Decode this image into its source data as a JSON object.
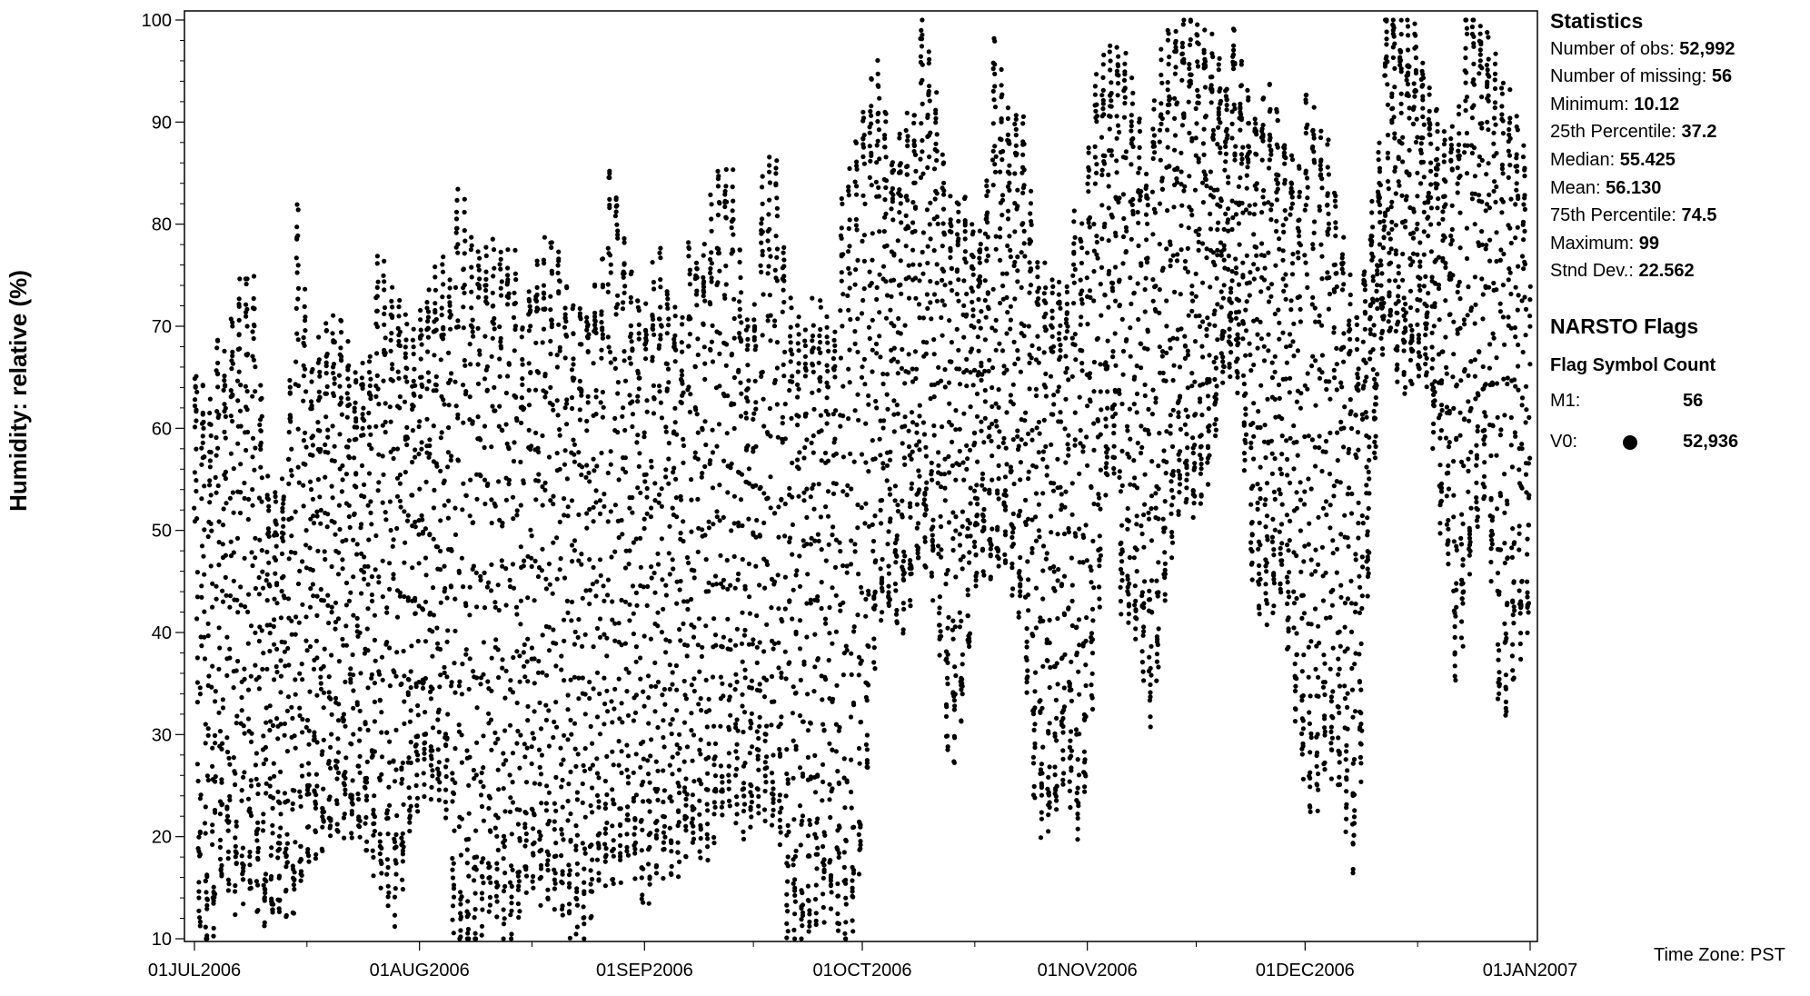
{
  "chart_data": {
    "type": "scatter",
    "title": "",
    "xlabel": "",
    "ylabel": "Humidity: relative (%)",
    "ylim": [
      10,
      100
    ],
    "y_ticks": [
      10,
      20,
      30,
      40,
      50,
      60,
      70,
      80,
      90,
      100
    ],
    "x_range": [
      "2006-07-01",
      "2007-01-01"
    ],
    "x_ticks": [
      "01JUL2006",
      "01AUG2006",
      "01SEP2006",
      "01OCT2006",
      "01NOV2006",
      "01DEC2006",
      "01JAN2007"
    ],
    "marker_color": "#000000",
    "grid": false,
    "series": [
      {
        "flag": "V0",
        "daily_envelope": [
          {
            "date": "2006-07-01",
            "min": 18,
            "max": 67
          },
          {
            "date": "2006-07-03",
            "min": 12,
            "max": 65
          },
          {
            "date": "2006-07-05",
            "min": 20,
            "max": 60
          },
          {
            "date": "2006-07-07",
            "min": 16,
            "max": 70
          },
          {
            "date": "2006-07-09",
            "min": 17,
            "max": 74
          },
          {
            "date": "2006-07-11",
            "min": 12,
            "max": 55
          },
          {
            "date": "2006-07-13",
            "min": 15,
            "max": 55
          },
          {
            "date": "2006-07-15",
            "min": 13,
            "max": 77
          },
          {
            "date": "2006-07-17",
            "min": 20,
            "max": 60
          },
          {
            "date": "2006-07-19",
            "min": 19,
            "max": 67
          },
          {
            "date": "2006-07-21",
            "min": 21,
            "max": 70
          },
          {
            "date": "2006-07-23",
            "min": 20,
            "max": 66
          },
          {
            "date": "2006-07-25",
            "min": 18,
            "max": 70
          },
          {
            "date": "2006-07-27",
            "min": 13,
            "max": 70
          },
          {
            "date": "2006-07-29",
            "min": 10,
            "max": 70
          },
          {
            "date": "2006-07-31",
            "min": 19,
            "max": 67
          },
          {
            "date": "2006-08-02",
            "min": 22,
            "max": 74
          },
          {
            "date": "2006-08-04",
            "min": 20,
            "max": 79
          },
          {
            "date": "2006-08-06",
            "min": 17,
            "max": 78
          },
          {
            "date": "2006-08-08",
            "min": 10,
            "max": 75
          },
          {
            "date": "2006-08-10",
            "min": 18,
            "max": 76
          },
          {
            "date": "2006-08-12",
            "min": 17,
            "max": 77
          },
          {
            "date": "2006-08-14",
            "min": 15,
            "max": 79
          },
          {
            "date": "2006-08-16",
            "min": 20,
            "max": 67
          },
          {
            "date": "2006-08-18",
            "min": 18,
            "max": 73
          },
          {
            "date": "2006-08-20",
            "min": 17,
            "max": 76
          },
          {
            "date": "2006-08-22",
            "min": 14,
            "max": 70
          },
          {
            "date": "2006-08-24",
            "min": 13,
            "max": 73
          },
          {
            "date": "2006-08-26",
            "min": 18,
            "max": 79
          },
          {
            "date": "2006-08-28",
            "min": 16,
            "max": 80
          },
          {
            "date": "2006-08-30",
            "min": 20,
            "max": 72
          },
          {
            "date": "2006-09-01",
            "min": 13,
            "max": 70
          },
          {
            "date": "2006-09-03",
            "min": 18,
            "max": 78
          },
          {
            "date": "2006-09-05",
            "min": 16,
            "max": 74
          },
          {
            "date": "2006-09-07",
            "min": 18,
            "max": 72
          },
          {
            "date": "2006-09-09",
            "min": 17,
            "max": 73
          },
          {
            "date": "2006-09-11",
            "min": 19,
            "max": 83
          },
          {
            "date": "2006-09-13",
            "min": 22,
            "max": 85
          },
          {
            "date": "2006-09-15",
            "min": 18,
            "max": 72
          },
          {
            "date": "2006-09-17",
            "min": 20,
            "max": 77
          },
          {
            "date": "2006-09-19",
            "min": 16,
            "max": 83
          },
          {
            "date": "2006-09-21",
            "min": 17,
            "max": 70
          },
          {
            "date": "2006-09-23",
            "min": 15,
            "max": 68
          },
          {
            "date": "2006-09-25",
            "min": 18,
            "max": 74
          },
          {
            "date": "2006-09-27",
            "min": 18,
            "max": 72
          },
          {
            "date": "2006-09-29",
            "min": 11,
            "max": 78
          },
          {
            "date": "2006-10-01",
            "min": 23,
            "max": 88
          },
          {
            "date": "2006-10-03",
            "min": 45,
            "max": 94
          },
          {
            "date": "2006-10-05",
            "min": 45,
            "max": 87
          },
          {
            "date": "2006-10-07",
            "min": 44,
            "max": 92
          },
          {
            "date": "2006-10-09",
            "min": 50,
            "max": 95
          },
          {
            "date": "2006-10-11",
            "min": 46,
            "max": 89
          },
          {
            "date": "2006-10-13",
            "min": 27,
            "max": 80
          },
          {
            "date": "2006-10-15",
            "min": 33,
            "max": 82
          },
          {
            "date": "2006-10-17",
            "min": 48,
            "max": 80
          },
          {
            "date": "2006-10-19",
            "min": 45,
            "max": 92
          },
          {
            "date": "2006-10-21",
            "min": 47,
            "max": 86
          },
          {
            "date": "2006-10-23",
            "min": 40,
            "max": 89
          },
          {
            "date": "2006-10-25",
            "min": 20,
            "max": 75
          },
          {
            "date": "2006-10-27",
            "min": 19,
            "max": 75
          },
          {
            "date": "2006-10-29",
            "min": 25,
            "max": 77
          },
          {
            "date": "2006-10-31",
            "min": 16,
            "max": 72
          },
          {
            "date": "2006-11-02",
            "min": 34,
            "max": 91
          },
          {
            "date": "2006-11-04",
            "min": 55,
            "max": 95
          },
          {
            "date": "2006-11-06",
            "min": 47,
            "max": 98
          },
          {
            "date": "2006-11-08",
            "min": 45,
            "max": 93
          },
          {
            "date": "2006-11-10",
            "min": 35,
            "max": 85
          },
          {
            "date": "2006-11-12",
            "min": 51,
            "max": 95
          },
          {
            "date": "2006-11-14",
            "min": 58,
            "max": 98
          },
          {
            "date": "2006-11-16",
            "min": 55,
            "max": 99
          },
          {
            "date": "2006-11-18",
            "min": 60,
            "max": 99
          },
          {
            "date": "2006-11-20",
            "min": 70,
            "max": 97
          },
          {
            "date": "2006-11-22",
            "min": 67,
            "max": 90
          },
          {
            "date": "2006-11-24",
            "min": 45,
            "max": 88
          },
          {
            "date": "2006-11-26",
            "min": 44,
            "max": 92
          },
          {
            "date": "2006-11-28",
            "min": 45,
            "max": 90
          },
          {
            "date": "2006-11-30",
            "min": 30,
            "max": 88
          },
          {
            "date": "2006-12-02",
            "min": 21,
            "max": 86
          },
          {
            "date": "2006-12-04",
            "min": 28,
            "max": 85
          },
          {
            "date": "2006-12-06",
            "min": 24,
            "max": 78
          },
          {
            "date": "2006-12-08",
            "min": 14,
            "max": 70
          },
          {
            "date": "2006-12-10",
            "min": 50,
            "max": 82
          },
          {
            "date": "2006-12-12",
            "min": 70,
            "max": 95
          },
          {
            "date": "2006-12-14",
            "min": 62,
            "max": 95
          },
          {
            "date": "2006-12-16",
            "min": 63,
            "max": 97
          },
          {
            "date": "2006-12-18",
            "min": 62,
            "max": 92
          },
          {
            "date": "2006-12-20",
            "min": 45,
            "max": 90
          },
          {
            "date": "2006-12-22",
            "min": 41,
            "max": 94
          },
          {
            "date": "2006-12-24",
            "min": 53,
            "max": 97
          },
          {
            "date": "2006-12-26",
            "min": 60,
            "max": 96
          },
          {
            "date": "2006-12-28",
            "min": 33,
            "max": 93
          },
          {
            "date": "2006-12-30",
            "min": 42,
            "max": 91
          },
          {
            "date": "2007-01-01",
            "min": 45,
            "max": 88
          }
        ]
      }
    ]
  },
  "statistics": {
    "header": "Statistics",
    "rows": [
      {
        "label": "Number of obs: ",
        "value": "52,992"
      },
      {
        "label": "Number of missing: ",
        "value": "56"
      },
      {
        "label": "Minimum: ",
        "value": "10.12"
      },
      {
        "label": "25th Percentile: ",
        "value": "37.2"
      },
      {
        "label": "Median: ",
        "value": "55.425"
      },
      {
        "label": "Mean: ",
        "value": "56.130"
      },
      {
        "label": "75th Percentile: ",
        "value": "74.5"
      },
      {
        "label": "Maximum: ",
        "value": "99"
      },
      {
        "label": "Stnd Dev.: ",
        "value": "22.562"
      }
    ]
  },
  "flags": {
    "title": "NARSTO Flags",
    "column_header": "Flag Symbol Count",
    "rows": [
      {
        "code": "M1:",
        "symbol": "none",
        "count": "56"
      },
      {
        "code": "V0:",
        "symbol": "filled-circle",
        "count": "52,936"
      }
    ]
  },
  "time_zone": "Time Zone: PST"
}
